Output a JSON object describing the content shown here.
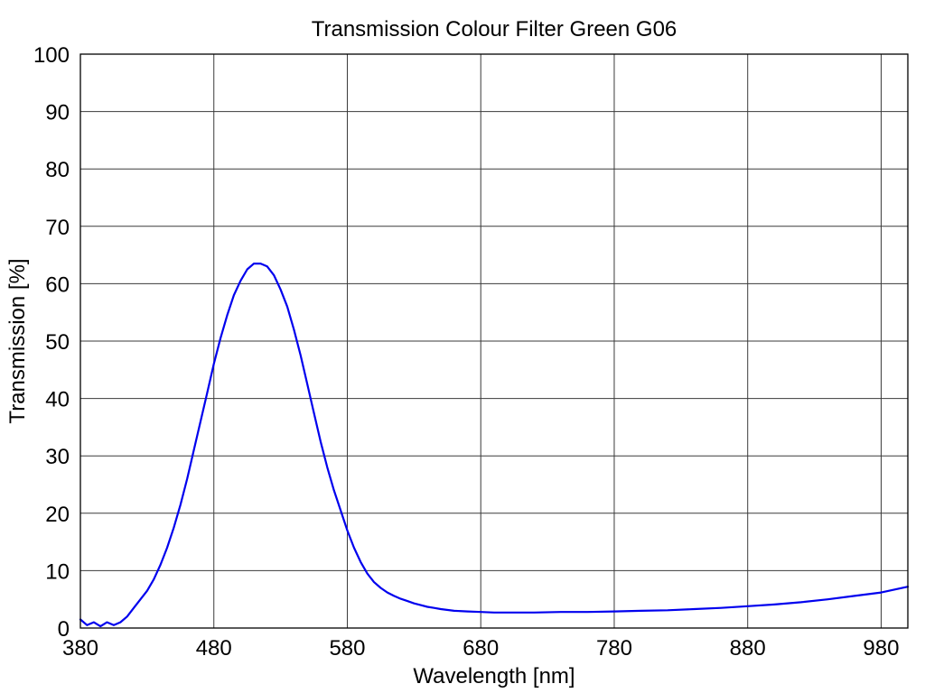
{
  "chart_data": {
    "type": "line",
    "title": "Transmission Colour Filter Green G06",
    "xlabel": "Wavelength [nm]",
    "ylabel": "Transmission [%]",
    "xlim": [
      380,
      1000
    ],
    "ylim": [
      0,
      100
    ],
    "x_ticks": [
      380,
      480,
      580,
      680,
      780,
      880,
      980
    ],
    "y_ticks": [
      0,
      10,
      20,
      30,
      40,
      50,
      60,
      70,
      80,
      90,
      100
    ],
    "grid": true,
    "legend": "none",
    "series": [
      {
        "color": "#0000ee",
        "x": [
          380,
          385,
          390,
          395,
          400,
          405,
          410,
          415,
          420,
          425,
          430,
          435,
          440,
          445,
          450,
          455,
          460,
          465,
          470,
          475,
          480,
          485,
          490,
          495,
          500,
          505,
          510,
          515,
          520,
          525,
          530,
          535,
          540,
          545,
          550,
          555,
          560,
          565,
          570,
          575,
          580,
          585,
          590,
          595,
          600,
          605,
          610,
          615,
          620,
          625,
          630,
          635,
          640,
          645,
          650,
          660,
          670,
          680,
          690,
          700,
          720,
          740,
          760,
          780,
          800,
          820,
          840,
          860,
          880,
          900,
          920,
          940,
          960,
          980,
          1000
        ],
        "y": [
          1.5,
          0.5,
          1.0,
          0.3,
          1.0,
          0.5,
          1.0,
          2.0,
          3.5,
          5.0,
          6.5,
          8.5,
          11.0,
          14.0,
          17.5,
          21.5,
          26.0,
          31.0,
          36.0,
          41.0,
          46.0,
          50.5,
          54.5,
          58.0,
          60.5,
          62.5,
          63.5,
          63.5,
          63.0,
          61.5,
          59.0,
          56.0,
          52.0,
          47.5,
          42.5,
          37.5,
          32.5,
          28.0,
          24.0,
          20.5,
          17.0,
          14.0,
          11.5,
          9.5,
          8.0,
          7.0,
          6.2,
          5.6,
          5.1,
          4.7,
          4.3,
          4.0,
          3.7,
          3.5,
          3.3,
          3.0,
          2.9,
          2.8,
          2.7,
          2.7,
          2.7,
          2.8,
          2.8,
          2.9,
          3.0,
          3.1,
          3.3,
          3.5,
          3.8,
          4.1,
          4.5,
          5.0,
          5.6,
          6.2,
          7.2
        ]
      }
    ]
  }
}
